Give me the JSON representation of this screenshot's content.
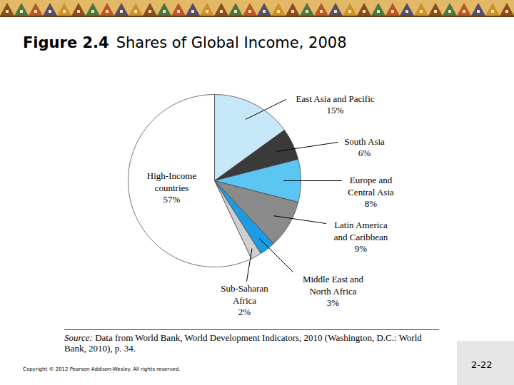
{
  "chart_data": {
    "type": "pie",
    "figure_label": "Figure 2.4",
    "title": "Shares of Global Income, 2008",
    "categories": [
      "East Asia and Pacific",
      "South Asia",
      "Europe and Central Asia",
      "Latin America and Caribbean",
      "Middle East and North Africa",
      "Sub-Saharan Africa",
      "High-Income countries"
    ],
    "values": [
      15,
      6,
      8,
      9,
      3,
      2,
      57
    ],
    "value_labels": [
      "15%",
      "6%",
      "8%",
      "9%",
      "3%",
      "2%",
      "57%"
    ],
    "colors": [
      "#c6e8f8",
      "#3a3a3a",
      "#5cc6f2",
      "#8a8a8a",
      "#1d9be3",
      "#cfcfcf",
      "#ffffff"
    ],
    "data_labels": true,
    "source": "Source: Data from World Bank, World Development Indicators, 2010 (Washington, D.C.: World Bank, 2010), p. 34.",
    "footer": "Copyright © 2012 Pearson Addison-Wesley. All rights reserved.",
    "page": "2-22"
  }
}
